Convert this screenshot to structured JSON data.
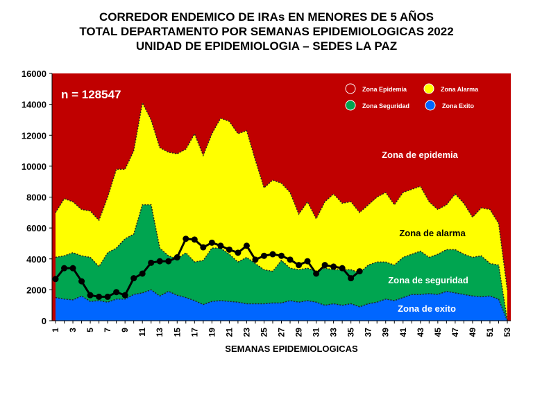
{
  "chart_data": {
    "type": "area",
    "title": [
      "CORREDOR ENDEMICO DE IRAs EN MENORES DE 5 AÑOS",
      "TOTAL DEPARTAMENTO POR SEMANAS EPIDEMIOLOGICAS 2022",
      "UNIDAD DE EPIDEMIOLOGIA – SEDES LA PAZ"
    ],
    "xlabel": "SEMANAS EPIDEMIOLOGICAS",
    "ylabel": "",
    "ylim": [
      0,
      16000
    ],
    "yticks": [
      0,
      2000,
      4000,
      6000,
      8000,
      10000,
      12000,
      14000,
      16000
    ],
    "xlim": [
      1,
      53
    ],
    "xtick_labels": [
      "1",
      "3",
      "5",
      "7",
      "9",
      "11",
      "13",
      "15",
      "17",
      "19",
      "21",
      "23",
      "25",
      "27",
      "29",
      "31",
      "33",
      "35",
      "37",
      "39",
      "41",
      "43",
      "45",
      "47",
      "49",
      "51",
      "53"
    ],
    "grid": false,
    "annotation_n": "n =  128547",
    "zone_labels": {
      "epidemia": "Zona de epidemia",
      "alarma": "Zona de alarma",
      "seguridad": "Zona de  seguridad",
      "exito": "Zona de exito"
    },
    "legend": {
      "placement": "top-right",
      "entries": [
        {
          "label": "Zona Epidemia",
          "color": "#c00000"
        },
        {
          "label": "Zona Alarma",
          "color": "#ffff00"
        },
        {
          "label": "Zona Seguridad",
          "color": "#00a550"
        },
        {
          "label": "Zona Exito",
          "color": "#0066ff"
        }
      ]
    },
    "colors": {
      "epidemia": "#c00000",
      "alarma": "#ffff00",
      "seguridad": "#00a550",
      "exito": "#0066ff",
      "line": "#000000"
    },
    "weeks": [
      1,
      2,
      3,
      4,
      5,
      6,
      7,
      8,
      9,
      10,
      11,
      12,
      13,
      14,
      15,
      16,
      17,
      18,
      19,
      20,
      21,
      22,
      23,
      24,
      25,
      26,
      27,
      28,
      29,
      30,
      31,
      32,
      33,
      34,
      35,
      36,
      37,
      38,
      39,
      40,
      41,
      42,
      43,
      44,
      45,
      46,
      47,
      48,
      49,
      50,
      51,
      52,
      53
    ],
    "exito_upper": [
      1500,
      1400,
      1350,
      1600,
      1250,
      1300,
      1200,
      1400,
      1400,
      1700,
      1800,
      2000,
      1600,
      1900,
      1650,
      1500,
      1300,
      1050,
      1250,
      1300,
      1250,
      1200,
      1100,
      1100,
      1100,
      1150,
      1150,
      1300,
      1200,
      1300,
      1200,
      1000,
      1100,
      1000,
      1100,
      900,
      1100,
      1200,
      1400,
      1300,
      1500,
      1700,
      1700,
      1750,
      1700,
      1900,
      1800,
      1700,
      1600,
      1550,
      1600,
      1400,
      0
    ],
    "seguridad_upper": [
      4100,
      4200,
      4400,
      4200,
      4100,
      3500,
      4400,
      4700,
      5300,
      5600,
      7500,
      7500,
      4700,
      4200,
      4000,
      4400,
      3800,
      3900,
      4700,
      4700,
      4300,
      3800,
      4100,
      3700,
      3300,
      3200,
      3900,
      3400,
      3300,
      3400,
      3200,
      3400,
      3300,
      3300,
      3300,
      3100,
      3600,
      3800,
      3800,
      3600,
      4100,
      4300,
      4500,
      4100,
      4300,
      4600,
      4600,
      4300,
      4100,
      4200,
      3700,
      3600,
      0
    ],
    "alarma_upper": [
      7000,
      7900,
      7700,
      7200,
      7100,
      6500,
      8000,
      9800,
      9800,
      11000,
      14100,
      13000,
      11200,
      10900,
      10800,
      11100,
      12100,
      10700,
      12100,
      13100,
      12900,
      12100,
      12300,
      10400,
      8600,
      9100,
      8900,
      8300,
      6900,
      7700,
      6600,
      7700,
      8200,
      7600,
      7700,
      7000,
      7500,
      8000,
      8300,
      7500,
      8300,
      8500,
      8700,
      7700,
      7200,
      7500,
      8200,
      7600,
      6700,
      7300,
      7200,
      6300,
      2000
    ],
    "cases_2022": [
      2700,
      3400,
      3400,
      2550,
      1650,
      1550,
      1550,
      1850,
      1650,
      2750,
      3050,
      3750,
      3850,
      3850,
      4100,
      5300,
      5250,
      4750,
      5050,
      4850,
      4600,
      4400,
      4850,
      3950,
      4200,
      4300,
      4200,
      3950,
      3600,
      3850,
      3050,
      3600,
      3500,
      3400,
      2750,
      3200
    ]
  }
}
